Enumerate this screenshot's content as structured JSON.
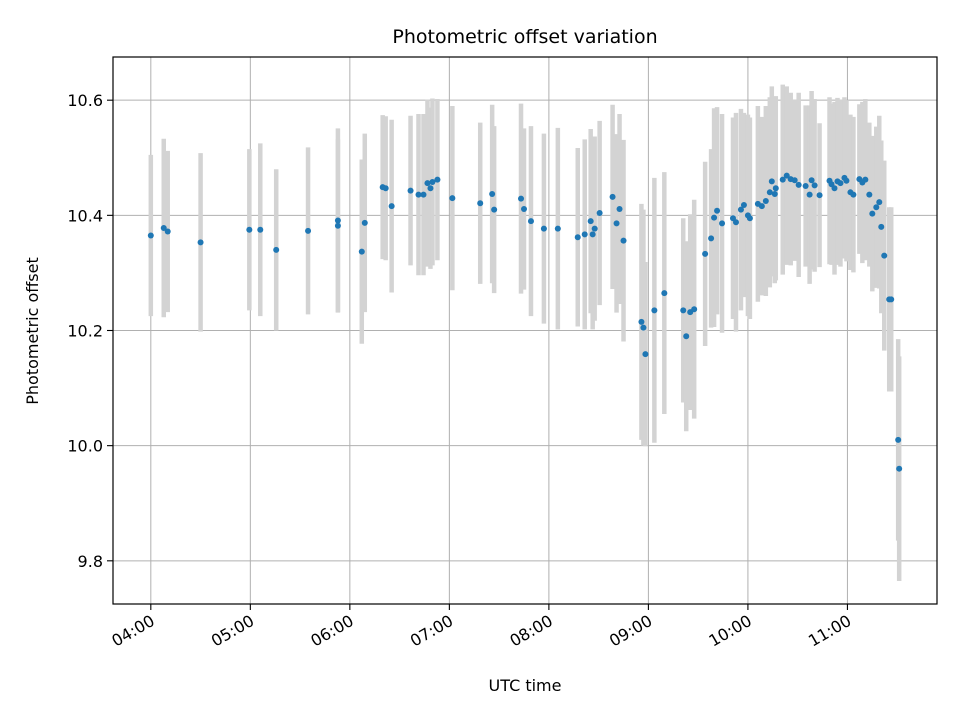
{
  "chart_data": {
    "type": "scatter",
    "title": "Photometric offset variation",
    "xlabel": "UTC time",
    "ylabel": "Photometric offset",
    "x_unit": "UTC hours",
    "xlim": [
      3.62,
      11.9
    ],
    "ylim": [
      9.725,
      10.675
    ],
    "x_ticks": [
      4,
      5,
      6,
      7,
      8,
      9,
      10,
      11
    ],
    "x_tick_labels": [
      "04:00",
      "05:00",
      "06:00",
      "07:00",
      "08:00",
      "09:00",
      "10:00",
      "11:00"
    ],
    "y_ticks": [
      9.8,
      10.0,
      10.2,
      10.4,
      10.6
    ],
    "y_tick_labels": [
      "9.8",
      "10.0",
      "10.2",
      "10.4",
      "10.6"
    ],
    "grid": true,
    "legend": "none",
    "point_color": "#1f77b4",
    "errorbar_color": "#d3d3d3",
    "series": [
      {
        "x": [
          4.0,
          4.13,
          4.17,
          4.5,
          4.99,
          5.1,
          5.26,
          5.58,
          5.88,
          5.88,
          6.12,
          6.15,
          6.33,
          6.36,
          6.42,
          6.61,
          6.69,
          6.74,
          6.78,
          6.81,
          6.83,
          6.88,
          7.03,
          7.31,
          7.43,
          7.45,
          7.72,
          7.75,
          7.82,
          7.95,
          8.09,
          8.29,
          8.36,
          8.42,
          8.44,
          8.46,
          8.51,
          8.64,
          8.68,
          8.71,
          8.75,
          8.93,
          8.95,
          8.97,
          9.06,
          9.16,
          9.35,
          9.38,
          9.42,
          9.46,
          9.57,
          9.63,
          9.66,
          9.69,
          9.74,
          9.85,
          9.88,
          9.93,
          9.96,
          10.0,
          10.02,
          10.1,
          10.14,
          10.18,
          10.22,
          10.24,
          10.27,
          10.28,
          10.35,
          10.39,
          10.43,
          10.47,
          10.51,
          10.58,
          10.62,
          10.64,
          10.67,
          10.72,
          10.82,
          10.84,
          10.87,
          10.9,
          10.93,
          10.97,
          10.99,
          11.03,
          11.06,
          11.12,
          11.15,
          11.18,
          11.22,
          11.25,
          11.29,
          11.32,
          11.34,
          11.37,
          11.42,
          11.44,
          11.51,
          11.52
        ],
        "y": [
          10.365,
          10.378,
          10.372,
          10.353,
          10.375,
          10.375,
          10.34,
          10.373,
          10.391,
          10.382,
          10.337,
          10.387,
          10.449,
          10.447,
          10.416,
          10.443,
          10.436,
          10.436,
          10.456,
          10.447,
          10.458,
          10.462,
          10.43,
          10.421,
          10.437,
          10.41,
          10.429,
          10.411,
          10.39,
          10.377,
          10.377,
          10.362,
          10.367,
          10.39,
          10.367,
          10.377,
          10.404,
          10.432,
          10.386,
          10.411,
          10.356,
          10.215,
          10.205,
          10.159,
          10.235,
          10.265,
          10.235,
          10.19,
          10.232,
          10.237,
          10.333,
          10.36,
          10.396,
          10.408,
          10.386,
          10.395,
          10.388,
          10.41,
          10.418,
          10.4,
          10.395,
          10.42,
          10.416,
          10.425,
          10.44,
          10.459,
          10.437,
          10.447,
          10.462,
          10.469,
          10.463,
          10.461,
          10.453,
          10.451,
          10.436,
          10.461,
          10.452,
          10.435,
          10.46,
          10.454,
          10.447,
          10.459,
          10.456,
          10.465,
          10.46,
          10.44,
          10.436,
          10.463,
          10.457,
          10.462,
          10.436,
          10.403,
          10.414,
          10.423,
          10.38,
          10.33,
          10.254,
          10.254,
          10.01,
          9.96
        ],
        "yerr": [
          0.14,
          0.155,
          0.14,
          0.155,
          0.14,
          0.15,
          0.14,
          0.145,
          0.16,
          0.15,
          0.16,
          0.155,
          0.125,
          0.125,
          0.15,
          0.13,
          0.14,
          0.14,
          0.145,
          0.14,
          0.145,
          0.14,
          0.16,
          0.14,
          0.155,
          0.145,
          0.165,
          0.14,
          0.165,
          0.165,
          0.175,
          0.155,
          0.165,
          0.16,
          0.165,
          0.16,
          0.16,
          0.16,
          0.155,
          0.165,
          0.175,
          0.205,
          0.205,
          0.16,
          0.23,
          0.21,
          0.16,
          0.165,
          0.17,
          0.19,
          0.16,
          0.155,
          0.19,
          0.18,
          0.19,
          0.175,
          0.19,
          0.175,
          0.16,
          0.175,
          0.175,
          0.17,
          0.155,
          0.165,
          0.165,
          0.165,
          0.155,
          0.16,
          0.165,
          0.155,
          0.15,
          0.14,
          0.16,
          0.14,
          0.155,
          0.155,
          0.15,
          0.125,
          0.145,
          0.14,
          0.15,
          0.145,
          0.145,
          0.14,
          0.14,
          0.135,
          0.135,
          0.13,
          0.14,
          0.14,
          0.125,
          0.135,
          0.14,
          0.15,
          0.15,
          0.165,
          0.16,
          0.16,
          0.175,
          0.195
        ]
      }
    ]
  }
}
